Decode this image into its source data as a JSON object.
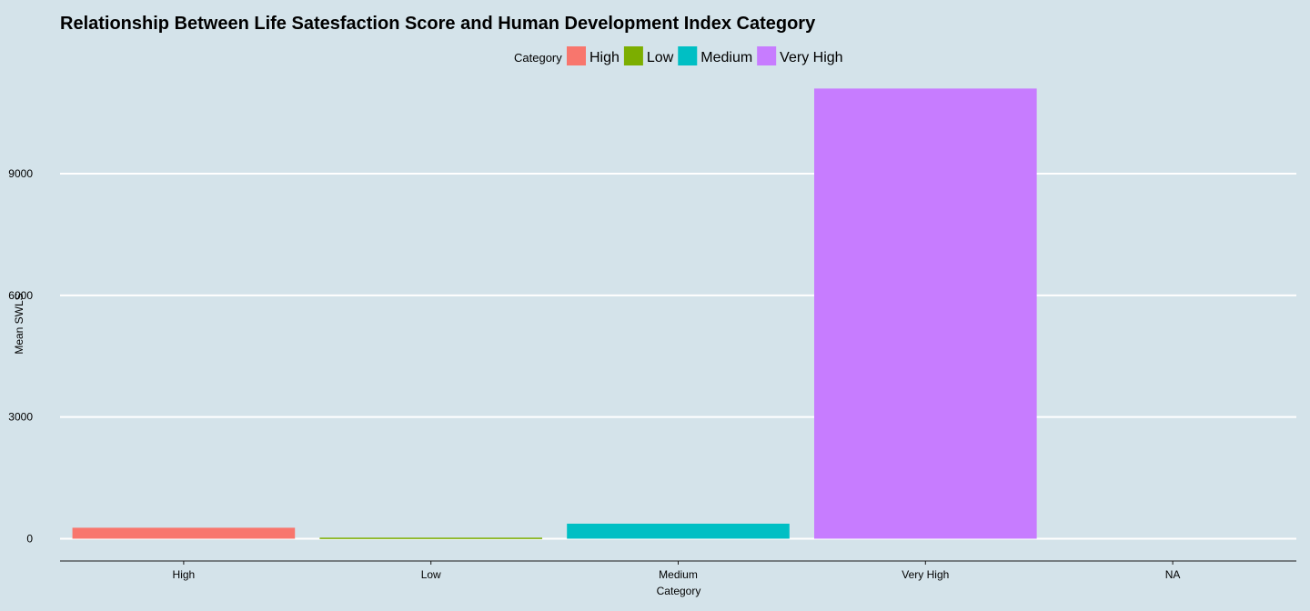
{
  "chart_data": {
    "type": "bar",
    "title": "Relationship Between Life Satesfaction Score and Human Development Index Category",
    "xlabel": "Category",
    "ylabel": "Mean SWLS",
    "categories": [
      "High",
      "Low",
      "Medium",
      "Very High",
      "NA"
    ],
    "values": [
      270,
      25,
      370,
      11100,
      null
    ],
    "ylim": [
      -550,
      11400
    ],
    "yticks": [
      0,
      3000,
      6000,
      9000
    ],
    "ytick_labels": [
      "0",
      "3000",
      "6000",
      "9000"
    ],
    "grid": "horizontal major",
    "legend": {
      "title": "Category",
      "placement": "top",
      "entries": [
        {
          "label": "High",
          "color": "#F8766D"
        },
        {
          "label": "Low",
          "color": "#7CAE00"
        },
        {
          "label": "Medium",
          "color": "#00BFC4"
        },
        {
          "label": "Very High",
          "color": "#C77CFF"
        }
      ]
    },
    "bar_colors": [
      "#F8766D",
      "#7CAE00",
      "#00BFC4",
      "#C77CFF",
      null
    ],
    "background_color": "#d4e3ea",
    "gridline_color": "#ffffff"
  }
}
